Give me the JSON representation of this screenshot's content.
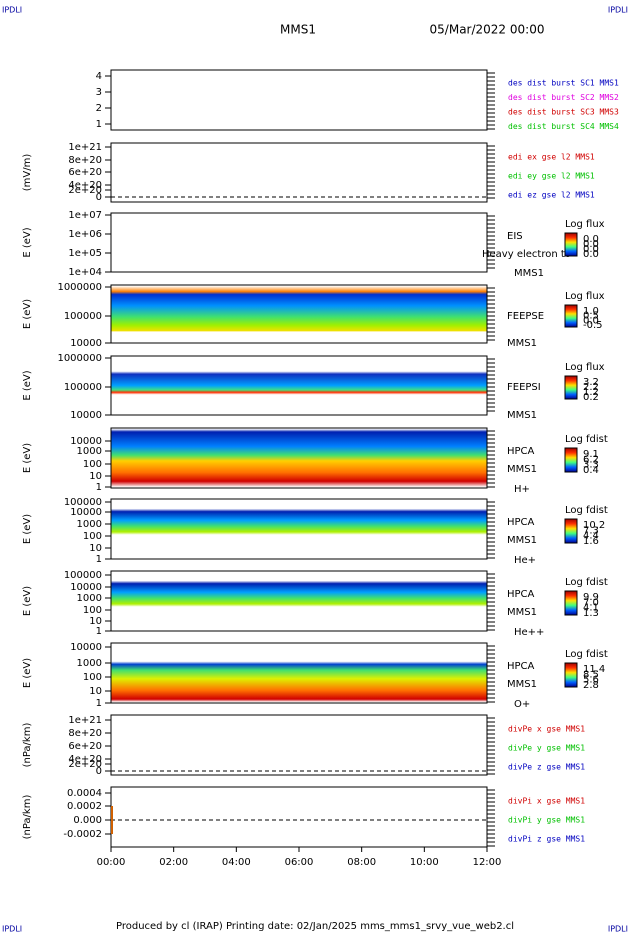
{
  "header": {
    "corner_left": "IPDLI",
    "corner_right": "IPDLI",
    "title": "MMS1",
    "date": "05/Mar/2022 00:00"
  },
  "panels": [
    {
      "yticks": [
        "4",
        "3",
        "2",
        "1"
      ],
      "legend": [
        {
          "text": "des dist burst SC1 MMS1",
          "color": "#0000c0"
        },
        {
          "text": "des dist burst SC2 MMS2",
          "color": "#e000e0"
        },
        {
          "text": "des dist burst SC3 MMS3",
          "color": "#d00000"
        },
        {
          "text": "des dist burst SC4 MMS4",
          "color": "#00c000"
        }
      ]
    },
    {
      "ylabel": "(mV/m)",
      "yticks": [
        "1e+21",
        "8e+20",
        "6e+20",
        "4e+20",
        "2e+20",
        "0"
      ],
      "legend": [
        {
          "text": "edi ex gse l2 MMS1",
          "color": "#d00000"
        },
        {
          "text": "edi ey gse l2 MMS1",
          "color": "#00c000"
        },
        {
          "text": "edi ez gse l2 MMS1",
          "color": "#0000c0"
        }
      ]
    },
    {
      "ylabel": "E (eV)",
      "yticks": [
        "1e+07",
        "1e+06",
        "1e+05",
        "1e+04"
      ],
      "labels": [
        "EIS",
        "Heavy electron to",
        "MMS1"
      ],
      "colorbar": {
        "title": "Log flux",
        "ticks": [
          "0.0",
          "0.0",
          "0.0",
          "0.0"
        ]
      }
    },
    {
      "ylabel": "E (eV)",
      "yticks": [
        "1000000",
        "100000",
        "10000"
      ],
      "labels": [
        "FEEPSE",
        "MMS1"
      ],
      "colorbar": {
        "title": "Log flux",
        "ticks": [
          "1.0",
          "0.5",
          "0.0",
          "-0.5"
        ]
      }
    },
    {
      "ylabel": "E (eV)",
      "yticks": [
        "1000000",
        "100000",
        "10000"
      ],
      "labels": [
        "FEEPSI",
        "MMS1"
      ],
      "colorbar": {
        "title": "Log flux",
        "ticks": [
          "3.2",
          "2.2",
          "1.2",
          "0.2"
        ]
      }
    },
    {
      "ylabel": "E (eV)",
      "yticks": [
        "10000",
        "1000",
        "100",
        "10",
        "1"
      ],
      "labels": [
        "HPCA",
        "MMS1",
        "H+"
      ],
      "colorbar": {
        "title": "Log fdist",
        "ticks": [
          "9.1",
          "6.2",
          "3.3",
          "0.4"
        ]
      }
    },
    {
      "ylabel": "E (eV)",
      "yticks": [
        "100000",
        "10000",
        "1000",
        "100",
        "10",
        "1"
      ],
      "labels": [
        "HPCA",
        "MMS1",
        "He+"
      ],
      "colorbar": {
        "title": "Log fdist",
        "ticks": [
          "10.2",
          "7.3",
          "4.4",
          "1.6"
        ]
      }
    },
    {
      "ylabel": "E (eV)",
      "yticks": [
        "100000",
        "10000",
        "1000",
        "100",
        "10",
        "1"
      ],
      "labels": [
        "HPCA",
        "MMS1",
        "He++"
      ],
      "colorbar": {
        "title": "Log fdist",
        "ticks": [
          "9.9",
          "7.0",
          "4.1",
          "1.3"
        ]
      }
    },
    {
      "ylabel": "E (eV)",
      "yticks": [
        "10000",
        "1000",
        "100",
        "10",
        "1"
      ],
      "labels": [
        "HPCA",
        "MMS1",
        "O+"
      ],
      "colorbar": {
        "title": "Log fdist",
        "ticks": [
          "11.4",
          "8.5",
          "5.6",
          "2.8"
        ]
      }
    },
    {
      "ylabel": "(nPa/km)",
      "yticks": [
        "1e+21",
        "8e+20",
        "6e+20",
        "4e+20",
        "2e+20",
        "0"
      ],
      "legend": [
        {
          "text": "divPe x gse MMS1",
          "color": "#d00000"
        },
        {
          "text": "divPe y gse MMS1",
          "color": "#00c000"
        },
        {
          "text": "divPe z gse MMS1",
          "color": "#0000c0"
        }
      ]
    },
    {
      "ylabel": "(nPa/km)",
      "yticks": [
        "0.0004",
        "0.0002",
        "0.000",
        "-0.0002"
      ],
      "legend": [
        {
          "text": "divPi x gse MMS1",
          "color": "#d00000"
        },
        {
          "text": "divPi y gse MMS1",
          "color": "#00c000"
        },
        {
          "text": "divPi z gse MMS1",
          "color": "#0000c0"
        }
      ]
    }
  ],
  "xticks": [
    "00:00",
    "02:00",
    "04:00",
    "06:00",
    "08:00",
    "10:00",
    "12:00"
  ],
  "footer": {
    "text": "Produced by cl (IRAP)   Printing date: 02/Jan/2025   mms_mms1_srvy_vue_web2.cl",
    "corner_left": "IPDLI",
    "corner_right": "IPDLI"
  }
}
